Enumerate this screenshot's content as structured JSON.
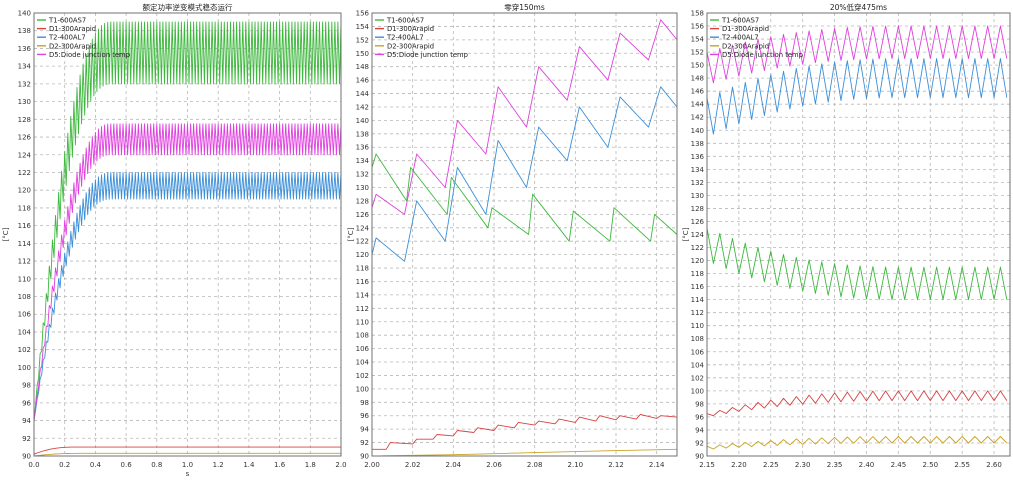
{
  "chart_data": [
    {
      "type": "line",
      "title": "额定功率逆变模式稳态运行",
      "xlabel": "s",
      "ylabel": "[°C]",
      "xlim": [
        0.0,
        2.0
      ],
      "ylim": [
        90,
        140
      ],
      "x_ticks": [
        0.0,
        0.2,
        0.4,
        0.6,
        0.8,
        1.0,
        1.2,
        1.4,
        1.6,
        1.8,
        2.0
      ],
      "y_ticks": [
        90,
        92,
        94,
        96,
        98,
        100,
        102,
        104,
        106,
        108,
        110,
        112,
        114,
        116,
        118,
        120,
        122,
        124,
        126,
        128,
        130,
        132,
        134,
        136,
        138,
        140
      ],
      "x_tick_decimals": 1,
      "grid": true,
      "legend_position": "top-left",
      "series": [
        {
          "name": "T1-600AS7",
          "color": "#3db83d",
          "envelope": {
            "start": [
              0.0,
              94.0
            ],
            "settled": [
              0.5,
              132.0,
              139.0
            ],
            "osc_period": 0.02
          }
        },
        {
          "name": "D1-300Arapid",
          "color": "#d94141",
          "envelope": {
            "start": [
              0.0,
              90.2
            ],
            "settled": [
              0.25,
              91.0,
              91.0
            ],
            "osc_period": 0.02
          }
        },
        {
          "name": "T2-400AL7",
          "color": "#3b8fd9",
          "envelope": {
            "start": [
              0.0,
              94.0
            ],
            "settled": [
              0.5,
              119.0,
              122.0
            ],
            "osc_period": 0.02
          }
        },
        {
          "name": "D2-300Arapid",
          "color": "#c9a227",
          "envelope": {
            "start": [
              0.0,
              90.0
            ],
            "settled": [
              0.3,
              90.3,
              90.3
            ],
            "osc_period": 0.02
          }
        },
        {
          "name": "D5:Diode junction temp",
          "color": "#e040e0",
          "envelope": {
            "start": [
              0.0,
              94.0
            ],
            "settled": [
              0.5,
              124.0,
              127.5
            ],
            "osc_period": 0.02
          }
        }
      ]
    },
    {
      "type": "line",
      "title": "零穿150ms",
      "xlabel": "",
      "ylabel": "[°C]",
      "xlim": [
        2.0,
        2.15
      ],
      "ylim": [
        90,
        156
      ],
      "x_ticks": [
        2.0,
        2.02,
        2.04,
        2.06,
        2.08,
        2.1,
        2.12,
        2.14
      ],
      "y_ticks": [
        90,
        92,
        94,
        96,
        98,
        100,
        102,
        104,
        106,
        108,
        110,
        112,
        114,
        116,
        118,
        120,
        122,
        124,
        126,
        128,
        130,
        132,
        134,
        136,
        138,
        140,
        142,
        144,
        146,
        148,
        150,
        152,
        154,
        156
      ],
      "x_tick_decimals": 2,
      "grid": true,
      "legend_position": "top-left",
      "series": [
        {
          "name": "T1-600AS7",
          "color": "#3db83d",
          "points": [
            [
              2.0,
              133.0
            ],
            [
              2.002,
              135.0
            ],
            [
              2.017,
              128.0
            ],
            [
              2.019,
              133.0
            ],
            [
              2.037,
              126.0
            ],
            [
              2.039,
              131.5
            ],
            [
              2.057,
              124.0
            ],
            [
              2.059,
              127.0
            ],
            [
              2.077,
              123.0
            ],
            [
              2.079,
              129.0
            ],
            [
              2.097,
              122.0
            ],
            [
              2.099,
              126.5
            ],
            [
              2.117,
              122.0
            ],
            [
              2.119,
              127.0
            ],
            [
              2.137,
              122.0
            ],
            [
              2.139,
              126.0
            ],
            [
              2.15,
              123.0
            ]
          ]
        },
        {
          "name": "D1-300Arapid",
          "color": "#d94141",
          "points": [
            [
              2.0,
              91.0
            ],
            [
              2.007,
              91.0
            ],
            [
              2.009,
              92.0
            ],
            [
              2.02,
              91.8
            ],
            [
              2.022,
              92.5
            ],
            [
              2.03,
              92.5
            ],
            [
              2.032,
              93.2
            ],
            [
              2.04,
              93.0
            ],
            [
              2.042,
              93.8
            ],
            [
              2.05,
              93.5
            ],
            [
              2.052,
              94.2
            ],
            [
              2.06,
              93.8
            ],
            [
              2.062,
              94.6
            ],
            [
              2.07,
              94.2
            ],
            [
              2.072,
              95.0
            ],
            [
              2.08,
              94.6
            ],
            [
              2.082,
              95.2
            ],
            [
              2.09,
              94.8
            ],
            [
              2.092,
              95.5
            ],
            [
              2.1,
              95.0
            ],
            [
              2.102,
              95.8
            ],
            [
              2.11,
              95.2
            ],
            [
              2.112,
              96.0
            ],
            [
              2.12,
              95.4
            ],
            [
              2.122,
              96.0
            ],
            [
              2.13,
              95.5
            ],
            [
              2.132,
              96.2
            ],
            [
              2.14,
              95.6
            ],
            [
              2.142,
              96.0
            ],
            [
              2.15,
              95.8
            ]
          ]
        },
        {
          "name": "T2-400AL7",
          "color": "#3b8fd9",
          "points": [
            [
              2.0,
              120.0
            ],
            [
              2.002,
              122.5
            ],
            [
              2.016,
              119.0
            ],
            [
              2.022,
              128.0
            ],
            [
              2.036,
              122.0
            ],
            [
              2.042,
              133.0
            ],
            [
              2.056,
              126.0
            ],
            [
              2.062,
              137.0
            ],
            [
              2.076,
              130.0
            ],
            [
              2.082,
              139.0
            ],
            [
              2.096,
              134.0
            ],
            [
              2.102,
              142.0
            ],
            [
              2.116,
              136.0
            ],
            [
              2.122,
              143.5
            ],
            [
              2.136,
              139.0
            ],
            [
              2.142,
              145.0
            ],
            [
              2.15,
              142.0
            ]
          ]
        },
        {
          "name": "D2-300Arapid",
          "color": "#c9a227",
          "points": [
            [
              2.0,
              90.0
            ],
            [
              2.04,
              90.2
            ],
            [
              2.08,
              90.5
            ],
            [
              2.12,
              90.8
            ],
            [
              2.15,
              91.0
            ]
          ]
        },
        {
          "name": "D5:Diode junction temp",
          "color": "#e040e0",
          "points": [
            [
              2.0,
              127.0
            ],
            [
              2.002,
              129.0
            ],
            [
              2.016,
              126.0
            ],
            [
              2.022,
              135.0
            ],
            [
              2.036,
              130.0
            ],
            [
              2.042,
              140.0
            ],
            [
              2.056,
              135.0
            ],
            [
              2.062,
              145.0
            ],
            [
              2.076,
              139.0
            ],
            [
              2.082,
              148.0
            ],
            [
              2.096,
              143.0
            ],
            [
              2.102,
              151.0
            ],
            [
              2.116,
              146.0
            ],
            [
              2.122,
              153.0
            ],
            [
              2.136,
              149.0
            ],
            [
              2.142,
              155.0
            ],
            [
              2.15,
              152.0
            ]
          ]
        }
      ]
    },
    {
      "type": "line",
      "title": "20%低穿475ms",
      "xlabel": "",
      "ylabel": "[°C]",
      "xlim": [
        2.15,
        2.625
      ],
      "ylim": [
        90,
        158
      ],
      "x_ticks": [
        2.15,
        2.2,
        2.25,
        2.3,
        2.35,
        2.4,
        2.45,
        2.5,
        2.55,
        2.6
      ],
      "y_ticks": [
        90,
        92,
        94,
        96,
        98,
        100,
        102,
        104,
        106,
        108,
        110,
        112,
        114,
        116,
        118,
        120,
        122,
        124,
        126,
        128,
        130,
        132,
        134,
        136,
        138,
        140,
        142,
        144,
        146,
        148,
        150,
        152,
        154,
        156,
        158
      ],
      "x_tick_decimals": 2,
      "grid": true,
      "legend_position": "top-left",
      "series": [
        {
          "name": "T1-600AS7",
          "color": "#3db83d",
          "envelope": {
            "start": [
              2.15,
              120.0,
              125.0
            ],
            "settled": [
              2.45,
              114.0,
              119.0
            ],
            "osc_period": 0.02
          }
        },
        {
          "name": "D1-300Arapid",
          "color": "#d94141",
          "envelope": {
            "start": [
              2.15,
              96.0,
              96.5
            ],
            "settled": [
              2.45,
              98.5,
              100.0
            ],
            "osc_period": 0.02
          }
        },
        {
          "name": "T2-400AL7",
          "color": "#3b8fd9",
          "envelope": {
            "start": [
              2.15,
              139.0,
              145.0
            ],
            "settled": [
              2.45,
              145.0,
              151.0
            ],
            "osc_period": 0.02
          }
        },
        {
          "name": "D2-300Arapid",
          "color": "#c9a227",
          "envelope": {
            "start": [
              2.15,
              91.0,
              91.5
            ],
            "settled": [
              2.45,
              92.0,
              93.0
            ],
            "osc_period": 0.02
          }
        },
        {
          "name": "D5:Diode junction temp",
          "color": "#e040e0",
          "envelope": {
            "start": [
              2.15,
              147.0,
              152.0
            ],
            "settled": [
              2.45,
              151.0,
              156.0
            ],
            "osc_period": 0.02
          }
        }
      ]
    }
  ]
}
